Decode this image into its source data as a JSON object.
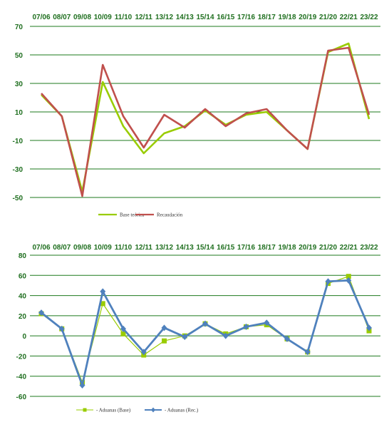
{
  "colors": {
    "tick": "#1f6f1f",
    "grid": "#1e7a1e",
    "green_line": "#99cc00",
    "red_line": "#c0504d",
    "blue_line": "#4f81bd"
  },
  "chart_data": [
    {
      "type": "line",
      "categories": [
        "07/06",
        "08/07",
        "09/08",
        "10/09",
        "11/10",
        "12/11",
        "13/12",
        "14/13",
        "15/14",
        "16/15",
        "17/16",
        "18/17",
        "19/18",
        "20/19",
        "21/20",
        "22/21",
        "23/22"
      ],
      "ylim": [
        -50,
        70
      ],
      "yticks": [
        -50,
        -30,
        -10,
        10,
        30,
        50,
        70
      ],
      "grid": true,
      "legend_position": "bottom-left",
      "series": [
        {
          "name": "Base teórica",
          "color": "#99cc00",
          "values": [
            22,
            7,
            -46,
            31,
            0,
            -19,
            -5,
            0,
            11,
            1,
            8,
            10,
            -3,
            -16,
            52,
            58,
            5
          ]
        },
        {
          "name": "Recaudación",
          "color": "#c0504d",
          "values": [
            23,
            7,
            -49,
            43,
            7,
            -15,
            8,
            -1,
            12,
            0,
            9,
            12,
            -3,
            -16,
            53,
            55,
            8
          ]
        }
      ]
    },
    {
      "type": "line",
      "categories": [
        "07/06",
        "08/07",
        "09/08",
        "10/09",
        "11/10",
        "12/11",
        "13/12",
        "14/13",
        "15/14",
        "16/15",
        "17/16",
        "18/17",
        "19/18",
        "20/19",
        "21/20",
        "22/21",
        "23/22"
      ],
      "ylim": [
        -60,
        80
      ],
      "yticks": [
        -60,
        -40,
        -20,
        0,
        20,
        40,
        60,
        80
      ],
      "grid": true,
      "legend_position": "bottom-left",
      "series": [
        {
          "name": "- Aduanas (Base)",
          "color": "#99cc00",
          "marker": "square",
          "values": [
            22,
            7,
            -46,
            32,
            2,
            -19,
            -5,
            0,
            12,
            2,
            9,
            11,
            -3,
            -16,
            52,
            59,
            5
          ]
        },
        {
          "name": "- Aduanas (Rec.)",
          "color": "#4f81bd",
          "marker": "diamond",
          "values": [
            23,
            7,
            -49,
            44,
            7,
            -16,
            8,
            -1,
            12,
            0,
            9,
            13,
            -3,
            -16,
            54,
            55,
            8
          ]
        }
      ]
    }
  ]
}
